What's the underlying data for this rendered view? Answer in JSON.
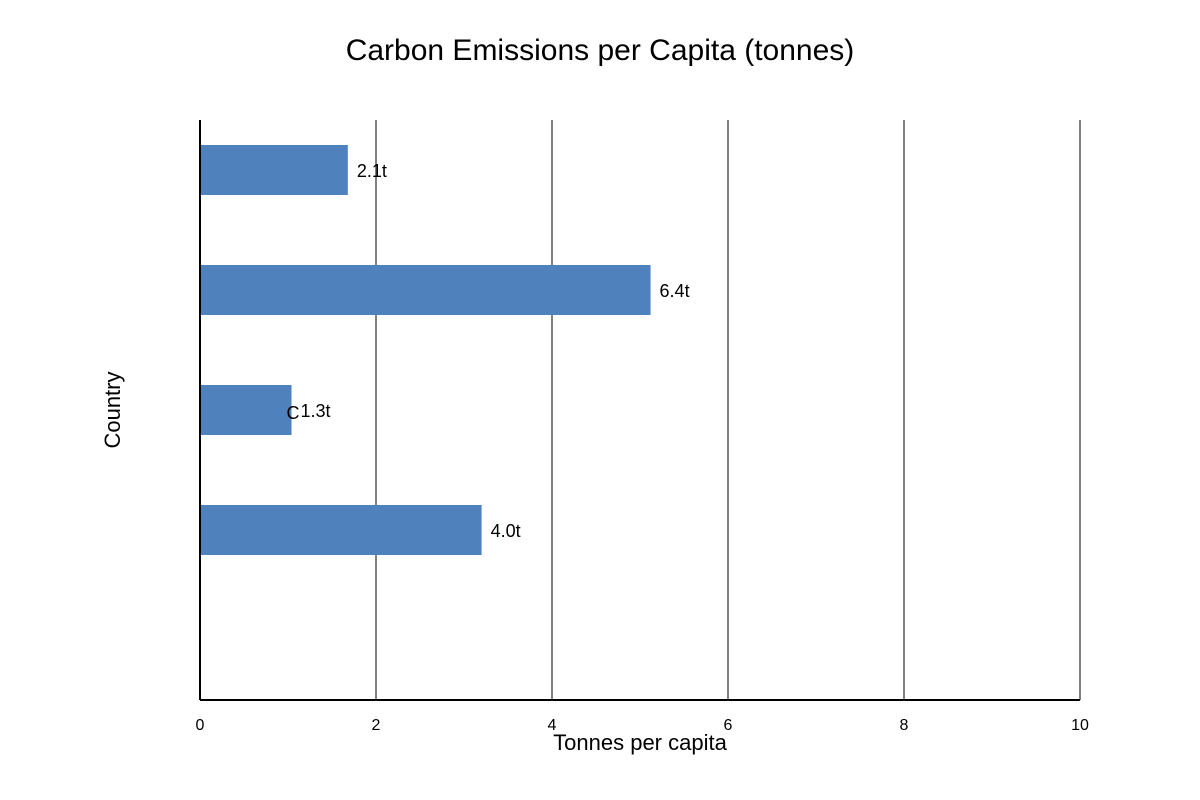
{
  "chart_data": {
    "type": "bar",
    "orientation": "horizontal",
    "title": "Carbon Emissions per Capita (tonnes)",
    "xlabel": "Tonnes per capita",
    "ylabel": "Country",
    "xlim": [
      0,
      10
    ],
    "x_ticks": [
      0,
      2,
      4,
      6,
      8,
      10
    ],
    "grid": true,
    "legend": "none",
    "bar_color": "#4f81bd",
    "series": [
      {
        "values": [
          2.1,
          6.4,
          1.3,
          4.0
        ],
        "labels": [
          "2.1t",
          "6.4t",
          "1.3t",
          "4.0t"
        ]
      }
    ],
    "annotations": [
      "C"
    ]
  }
}
